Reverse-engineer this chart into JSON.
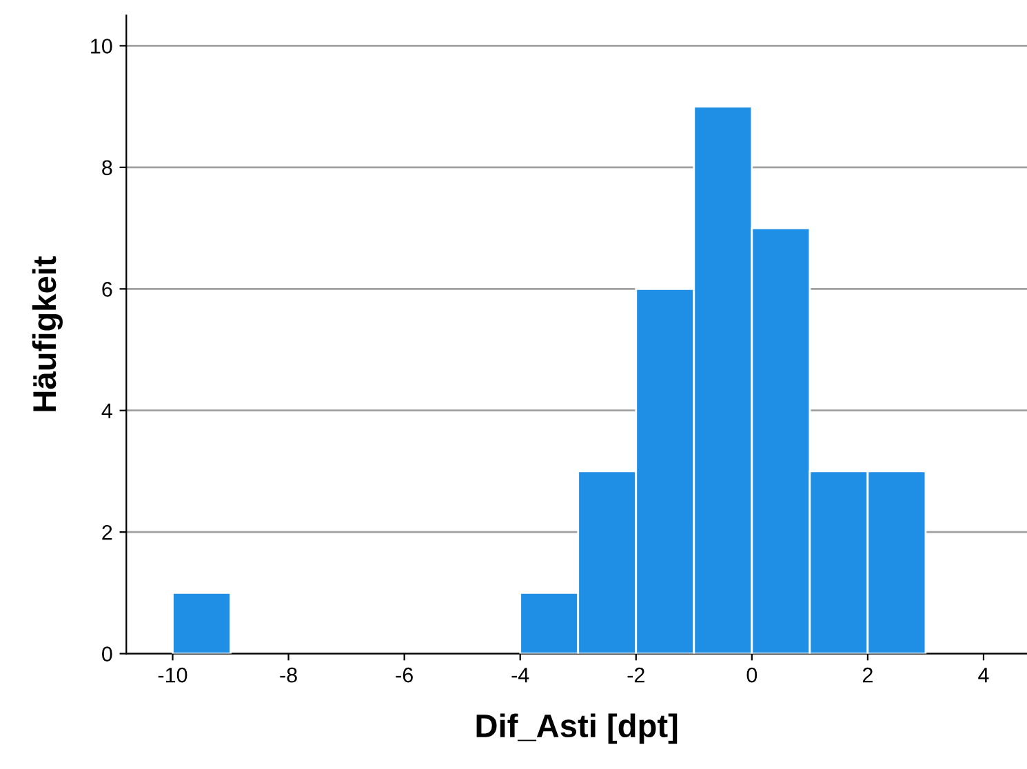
{
  "chart_data": {
    "type": "histogram",
    "xlabel": "Dif_Asti [dpt]",
    "ylabel": "Häufigkeit",
    "bins": [
      -10,
      -9,
      -8,
      -7,
      -6,
      -5,
      -4,
      -3,
      -2,
      -1,
      0,
      1,
      2,
      3
    ],
    "values": [
      1,
      0,
      0,
      0,
      0,
      0,
      1,
      3,
      6,
      9,
      7,
      3,
      3
    ],
    "color": "#1f8fe6",
    "xlim": [
      -10.8,
      4.75
    ],
    "xticks": [
      -10,
      -8,
      -6,
      -4,
      -2,
      0,
      2,
      4
    ],
    "ylim": [
      0,
      10.5
    ],
    "yticks": [
      0,
      2,
      4,
      6,
      8,
      10
    ],
    "grid": "y",
    "legend": false
  }
}
